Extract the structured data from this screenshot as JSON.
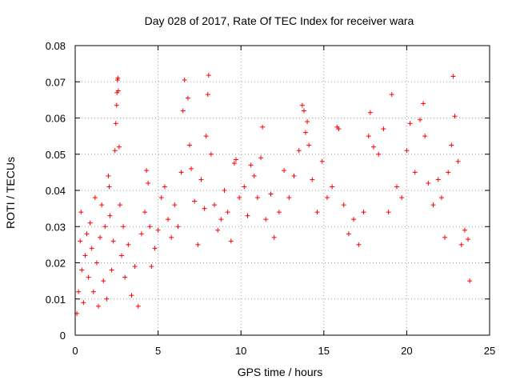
{
  "chart_data": {
    "type": "scatter",
    "title": "Day 028 of 2017, Rate Of TEC Index for receiver wara",
    "xlabel": "GPS time / hours",
    "ylabel": "ROTI / TECUs",
    "xlim": [
      0,
      25
    ],
    "ylim": [
      0,
      0.08
    ],
    "xticks": [
      0,
      5,
      10,
      15,
      20,
      25
    ],
    "yticks": [
      0,
      0.01,
      0.02,
      0.03,
      0.04,
      0.05,
      0.06,
      0.07,
      0.08
    ],
    "xtick_labels": [
      "0",
      "5",
      "10",
      "15",
      "20",
      "25"
    ],
    "ytick_labels": [
      "0",
      "0.01",
      "0.02",
      "0.03",
      "0.04",
      "0.05",
      "0.06",
      "0.07",
      "0.08"
    ],
    "grid": true,
    "marker": "+",
    "color": "#ff0000",
    "series": [
      {
        "name": "ROTI",
        "points": [
          [
            0.1,
            0.006
          ],
          [
            0.2,
            0.012
          ],
          [
            0.3,
            0.026
          ],
          [
            0.35,
            0.034
          ],
          [
            0.4,
            0.018
          ],
          [
            0.5,
            0.009
          ],
          [
            0.6,
            0.022
          ],
          [
            0.7,
            0.028
          ],
          [
            0.8,
            0.016
          ],
          [
            0.9,
            0.031
          ],
          [
            1.0,
            0.024
          ],
          [
            1.1,
            0.012
          ],
          [
            1.2,
            0.038
          ],
          [
            1.3,
            0.02
          ],
          [
            1.4,
            0.008
          ],
          [
            1.5,
            0.027
          ],
          [
            1.6,
            0.036
          ],
          [
            1.7,
            0.015
          ],
          [
            1.8,
            0.03
          ],
          [
            1.9,
            0.01
          ],
          [
            2.0,
            0.044
          ],
          [
            2.05,
            0.041
          ],
          [
            2.1,
            0.033
          ],
          [
            2.2,
            0.018
          ],
          [
            2.3,
            0.026
          ],
          [
            2.4,
            0.051
          ],
          [
            2.45,
            0.0585
          ],
          [
            2.5,
            0.0635
          ],
          [
            2.52,
            0.067
          ],
          [
            2.55,
            0.0705
          ],
          [
            2.58,
            0.071
          ],
          [
            2.6,
            0.0675
          ],
          [
            2.65,
            0.052
          ],
          [
            2.7,
            0.036
          ],
          [
            2.8,
            0.022
          ],
          [
            2.9,
            0.03
          ],
          [
            3.0,
            0.016
          ],
          [
            3.2,
            0.025
          ],
          [
            3.4,
            0.011
          ],
          [
            3.6,
            0.019
          ],
          [
            3.8,
            0.008
          ],
          [
            4.0,
            0.028
          ],
          [
            4.2,
            0.034
          ],
          [
            4.3,
            0.0455
          ],
          [
            4.4,
            0.042
          ],
          [
            4.5,
            0.03
          ],
          [
            4.6,
            0.019
          ],
          [
            4.8,
            0.024
          ],
          [
            5.0,
            0.029
          ],
          [
            5.2,
            0.038
          ],
          [
            5.4,
            0.041
          ],
          [
            5.6,
            0.032
          ],
          [
            5.8,
            0.027
          ],
          [
            6.0,
            0.036
          ],
          [
            6.2,
            0.03
          ],
          [
            6.4,
            0.045
          ],
          [
            6.5,
            0.062
          ],
          [
            6.6,
            0.0705
          ],
          [
            6.8,
            0.0655
          ],
          [
            6.9,
            0.0525
          ],
          [
            7.0,
            0.046
          ],
          [
            7.2,
            0.037
          ],
          [
            7.4,
            0.025
          ],
          [
            7.6,
            0.043
          ],
          [
            7.8,
            0.035
          ],
          [
            7.9,
            0.055
          ],
          [
            8.0,
            0.0665
          ],
          [
            8.05,
            0.0718
          ],
          [
            8.2,
            0.05
          ],
          [
            8.4,
            0.036
          ],
          [
            8.6,
            0.029
          ],
          [
            8.8,
            0.032
          ],
          [
            9.0,
            0.04
          ],
          [
            9.2,
            0.034
          ],
          [
            9.4,
            0.026
          ],
          [
            9.6,
            0.0475
          ],
          [
            9.7,
            0.0485
          ],
          [
            9.9,
            0.038
          ],
          [
            10.2,
            0.041
          ],
          [
            10.4,
            0.033
          ],
          [
            10.6,
            0.047
          ],
          [
            10.8,
            0.044
          ],
          [
            11.0,
            0.038
          ],
          [
            11.2,
            0.049
          ],
          [
            11.3,
            0.0575
          ],
          [
            11.5,
            0.032
          ],
          [
            11.8,
            0.039
          ],
          [
            12.0,
            0.027
          ],
          [
            12.3,
            0.034
          ],
          [
            12.6,
            0.0455
          ],
          [
            12.9,
            0.038
          ],
          [
            13.2,
            0.044
          ],
          [
            13.5,
            0.051
          ],
          [
            13.7,
            0.0635
          ],
          [
            13.8,
            0.062
          ],
          [
            13.9,
            0.056
          ],
          [
            14.0,
            0.059
          ],
          [
            14.1,
            0.0525
          ],
          [
            14.3,
            0.043
          ],
          [
            14.6,
            0.034
          ],
          [
            14.9,
            0.048
          ],
          [
            15.2,
            0.038
          ],
          [
            15.5,
            0.041
          ],
          [
            15.8,
            0.0575
          ],
          [
            15.9,
            0.057
          ],
          [
            16.2,
            0.036
          ],
          [
            16.5,
            0.028
          ],
          [
            16.8,
            0.032
          ],
          [
            17.1,
            0.025
          ],
          [
            17.4,
            0.034
          ],
          [
            17.7,
            0.055
          ],
          [
            17.8,
            0.0615
          ],
          [
            18.0,
            0.052
          ],
          [
            18.3,
            0.05
          ],
          [
            18.6,
            0.057
          ],
          [
            18.9,
            0.034
          ],
          [
            19.1,
            0.0665
          ],
          [
            19.4,
            0.041
          ],
          [
            19.7,
            0.038
          ],
          [
            20.0,
            0.051
          ],
          [
            20.2,
            0.0585
          ],
          [
            20.5,
            0.045
          ],
          [
            20.8,
            0.0595
          ],
          [
            21.0,
            0.064
          ],
          [
            21.1,
            0.055
          ],
          [
            21.3,
            0.042
          ],
          [
            21.6,
            0.036
          ],
          [
            21.9,
            0.043
          ],
          [
            22.1,
            0.038
          ],
          [
            22.3,
            0.027
          ],
          [
            22.5,
            0.045
          ],
          [
            22.7,
            0.0525
          ],
          [
            22.8,
            0.0715
          ],
          [
            22.9,
            0.0605
          ],
          [
            23.1,
            0.048
          ],
          [
            23.3,
            0.025
          ],
          [
            23.5,
            0.029
          ],
          [
            23.7,
            0.0265
          ],
          [
            23.8,
            0.015
          ]
        ]
      }
    ]
  }
}
